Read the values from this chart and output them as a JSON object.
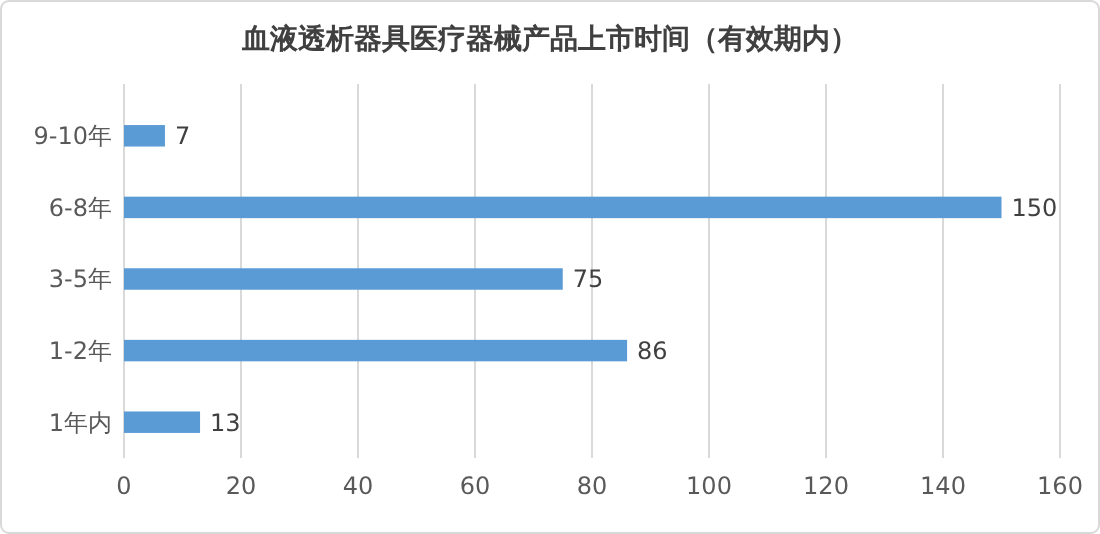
{
  "chart_data": {
    "type": "bar",
    "orientation": "horizontal",
    "title": "血液透析器具医疗器械产品上市时间（有效期内）",
    "categories": [
      "9-10年",
      "6-8年",
      "3-5年",
      "1-2年",
      "1年内"
    ],
    "values": [
      7,
      150,
      75,
      86,
      13
    ],
    "color": "#5b9bd5",
    "xlim": [
      0,
      160
    ],
    "xticks": [
      0,
      20,
      40,
      60,
      80,
      100,
      120,
      140,
      160
    ],
    "grid": "x",
    "data_labels": true
  }
}
